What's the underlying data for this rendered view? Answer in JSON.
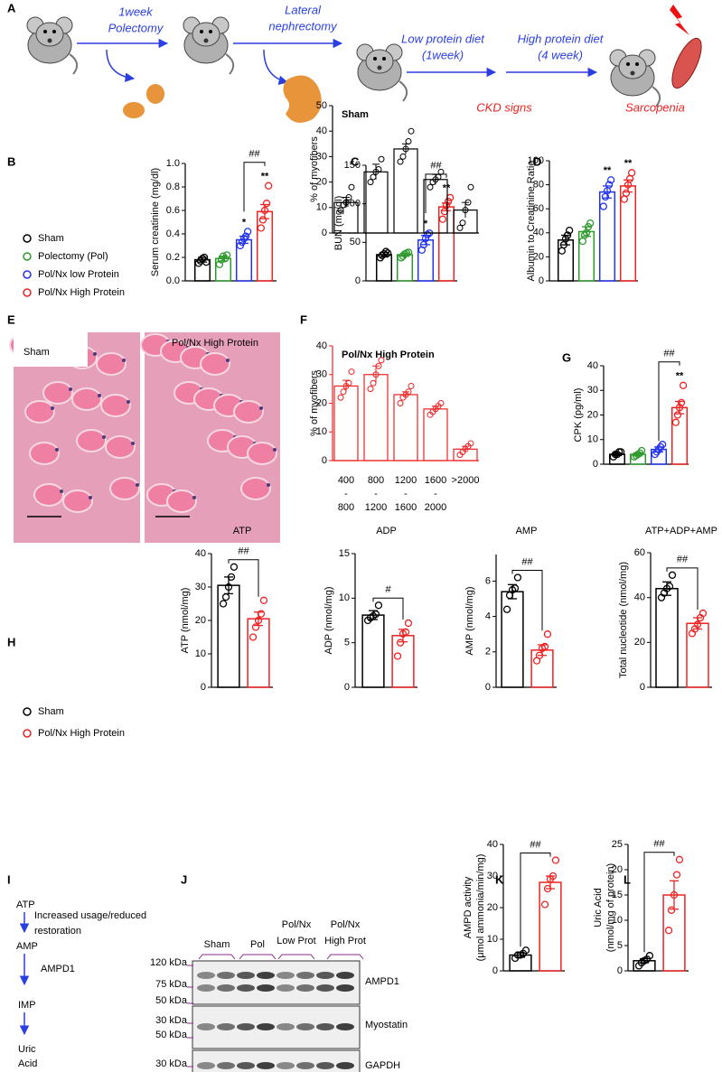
{
  "panel_labels": [
    "A",
    "B",
    "C",
    "D",
    "E",
    "F",
    "G",
    "H",
    "I",
    "J",
    "K",
    "L"
  ],
  "workflow": {
    "steps": [
      [
        "1week",
        "Polectomy"
      ],
      [
        "Lateral",
        "nephrectomy"
      ],
      [
        "Low protein diet",
        "(1week)"
      ],
      [
        "High protein diet",
        "(4 week)"
      ]
    ],
    "outcomes": [
      "CKD signs",
      "Sarcopenia"
    ]
  },
  "histology": [
    "Sham",
    "Pol/Nx High Protein"
  ],
  "pathway": {
    "nodes": [
      "ATP",
      "AMP",
      "IMP",
      [
        "Uric",
        "Acid"
      ]
    ],
    "edges": [
      [
        "Increased usage/reduced",
        "restoration"
      ],
      "AMPD1"
    ]
  },
  "western_blot": {
    "groups": [
      "Sham",
      "Pol",
      [
        "Pol/Nx",
        "Low Prot"
      ],
      [
        "Pol/Nx",
        "High Prot"
      ]
    ],
    "markers": [
      "120 kDa",
      "75 kDa",
      "50 kDa",
      "30 kDa",
      "50 kDa",
      "30 kDa"
    ],
    "proteins": [
      "AMPD1",
      "Myostatin",
      "GAPDH"
    ]
  },
  "chart_data": [
    {
      "type": "dotbar",
      "y_label": "Serum creatinine (mg/dl)",
      "ylim": [
        0,
        1
      ],
      "yticks": [
        {
          "value": 0,
          "label": "0.0"
        },
        {
          "value": 0.2,
          "label": "0.2"
        },
        {
          "value": 0.4,
          "label": "0.4"
        },
        {
          "value": 0.6,
          "label": "0.6"
        },
        {
          "value": 0.8,
          "label": "0.8"
        },
        {
          "value": 1,
          "label": "1.0"
        }
      ],
      "legend": "left",
      "comparison": "##",
      "series": [
        {
          "name": "Sham",
          "color": "#000000",
          "values": [
            0.18
          ],
          "errors": [
            0.02
          ],
          "points": [
            0.15,
            0.17,
            0.19,
            0.2,
            0.16
          ]
        },
        {
          "name": "Polectomy (Pol)",
          "color": "#2e9a2e",
          "values": [
            0.19
          ],
          "errors": [
            0.02
          ],
          "points": [
            0.14,
            0.18,
            0.21,
            0.19,
            0.22
          ]
        },
        {
          "name": "Pol/Nx low Protein",
          "color": "#2233ee",
          "values": [
            0.35
          ],
          "errors": [
            0.03
          ],
          "points": [
            0.3,
            0.33,
            0.36,
            0.38,
            0.42
          ],
          "significance": "*"
        },
        {
          "name": "Pol/Nx High Protein",
          "color": "#ee2222",
          "values": [
            0.59
          ],
          "errors": [
            0.06
          ],
          "points": [
            0.45,
            0.52,
            0.6,
            0.66,
            0.81
          ],
          "significance": "**"
        }
      ]
    },
    {
      "type": "dotbar",
      "y_label": "BUN (mg/dl)",
      "ylim": [
        0,
        150
      ],
      "yticks": [
        0,
        50,
        100,
        150
      ],
      "comparison": "##",
      "series": [
        {
          "color": "#000000",
          "values": [
            34
          ],
          "errors": [
            3
          ],
          "points": [
            30,
            33,
            35,
            38,
            36
          ]
        },
        {
          "color": "#2e9a2e",
          "values": [
            34
          ],
          "errors": [
            2
          ],
          "points": [
            30,
            32,
            35,
            36,
            37
          ]
        },
        {
          "color": "#2233ee",
          "values": [
            53
          ],
          "errors": [
            6
          ],
          "points": [
            40,
            47,
            55,
            60,
            62
          ],
          "significance": "*"
        },
        {
          "color": "#ee2222",
          "values": [
            96
          ],
          "errors": [
            5
          ],
          "points": [
            80,
            90,
            98,
            103,
            108
          ],
          "significance": "**"
        }
      ]
    },
    {
      "type": "dotbar",
      "y_label": "Albumin to Creatinine  Ratio",
      "ylim": [
        0,
        100
      ],
      "yticks": [
        0,
        20,
        40,
        60,
        80,
        100
      ],
      "series": [
        {
          "color": "#000000",
          "values": [
            34
          ],
          "errors": [
            4
          ],
          "points": [
            25,
            30,
            35,
            38,
            42
          ]
        },
        {
          "color": "#2e9a2e",
          "values": [
            41
          ],
          "errors": [
            4
          ],
          "points": [
            33,
            38,
            40,
            45,
            48
          ]
        },
        {
          "color": "#2233ee",
          "values": [
            74
          ],
          "errors": [
            5
          ],
          "points": [
            62,
            70,
            75,
            80,
            84
          ],
          "significance": "**"
        },
        {
          "color": "#ee2222",
          "values": [
            79
          ],
          "errors": [
            5
          ],
          "points": [
            68,
            73,
            80,
            85,
            90
          ],
          "significance": "**"
        }
      ]
    },
    {
      "type": "bar",
      "title": "Sham",
      "y_label": "% of myofibers",
      "color": "#000000",
      "ylim": [
        0,
        50
      ],
      "yticks": [
        0,
        10,
        20,
        30,
        40,
        50
      ],
      "values": [
        12,
        24,
        33,
        21,
        9
      ],
      "errors": [
        2,
        3,
        2,
        2,
        3
      ],
      "points": [
        [
          9,
          11,
          12,
          14,
          18
        ],
        [
          20,
          22,
          24,
          25,
          29
        ],
        [
          28,
          30,
          33,
          36,
          40
        ],
        [
          18,
          20,
          21,
          22,
          24
        ],
        [
          2,
          4,
          9,
          12,
          18
        ]
      ]
    },
    {
      "type": "bar",
      "title": "Pol/Nx High Protein",
      "y_label": "% of myofibers",
      "color": "#ee2222",
      "ylim": [
        0,
        40
      ],
      "yticks": [
        0,
        10,
        20,
        30,
        40
      ],
      "categories": [
        [
          "400",
          "-",
          "800"
        ],
        [
          "800",
          "-",
          "1200"
        ],
        [
          "1200",
          "-",
          "1600"
        ],
        [
          "1600",
          "-",
          "2000"
        ],
        [
          ">2000"
        ]
      ],
      "values": [
        26,
        30,
        23,
        18,
        4
      ],
      "errors": [
        2,
        3,
        1,
        1,
        1
      ],
      "points": [
        [
          22,
          24,
          26,
          27,
          31
        ],
        [
          25,
          27,
          30,
          33,
          35
        ],
        [
          20,
          22,
          23,
          24,
          26
        ],
        [
          16,
          17,
          18,
          19,
          20
        ],
        [
          2,
          3,
          4,
          5,
          6
        ]
      ]
    },
    {
      "type": "dotbar",
      "y_label": "CPK (pg/ml)",
      "ylim": [
        0,
        40
      ],
      "yticks": [
        0,
        10,
        20,
        30,
        40
      ],
      "comparison": "##",
      "series": [
        {
          "color": "#000000",
          "values": [
            4
          ],
          "errors": [
            0.5
          ],
          "points": [
            3,
            4,
            4,
            5,
            5
          ]
        },
        {
          "color": "#2e9a2e",
          "values": [
            4
          ],
          "errors": [
            0.6
          ],
          "points": [
            3,
            3.5,
            4,
            4.5,
            5.5
          ]
        },
        {
          "color": "#2233ee",
          "values": [
            6
          ],
          "errors": [
            1
          ],
          "points": [
            4,
            5,
            6,
            7,
            8
          ]
        },
        {
          "color": "#ee2222",
          "values": [
            23
          ],
          "errors": [
            2.5
          ],
          "points": [
            17,
            20,
            23,
            25,
            32
          ],
          "significance": "**"
        }
      ]
    },
    {
      "type": "dotbar",
      "title": "ATP",
      "title_color": "#2a3fe0",
      "y_label": "ATP (nmol/mg)",
      "ylim": [
        0,
        40
      ],
      "yticks": [
        0,
        10,
        20,
        30,
        40
      ],
      "legend": "left",
      "comparison": "##",
      "series": [
        {
          "name": "Sham",
          "color": "#000000",
          "values": [
            30.5
          ],
          "errors": [
            2.5
          ],
          "points": [
            25,
            27,
            30,
            33,
            36
          ]
        },
        {
          "name": "Pol/Nx High Protein",
          "color": "#ee2222",
          "values": [
            20.5
          ],
          "errors": [
            2
          ],
          "points": [
            15,
            18,
            20,
            22,
            26
          ]
        }
      ]
    },
    {
      "type": "dotbar",
      "title": "ADP",
      "title_color": "#2a3fe0",
      "y_label": "ADP  (nmol/mg)",
      "ylim": [
        0,
        15
      ],
      "yticks": [
        0,
        5,
        10,
        15
      ],
      "comparison": "#",
      "series": [
        {
          "color": "#000000",
          "values": [
            8.1
          ],
          "errors": [
            0.5
          ],
          "points": [
            7.5,
            7.8,
            8,
            8.2,
            9.2
          ]
        },
        {
          "color": "#ee2222",
          "values": [
            5.8
          ],
          "errors": [
            0.7
          ],
          "points": [
            3.5,
            5,
            6,
            6.2,
            7.2
          ]
        }
      ]
    },
    {
      "type": "dotbar",
      "title": "AMP",
      "title_color": "#2a3fe0",
      "y_label": "AMP (nmol/mg)",
      "ylim": [
        0,
        7.5
      ],
      "yticks": [
        0,
        2,
        4,
        6
      ],
      "comparison": "##",
      "series": [
        {
          "color": "#000000",
          "values": [
            5.4
          ],
          "errors": [
            0.4
          ],
          "points": [
            4.4,
            5.2,
            5.5,
            5.6,
            6.2
          ]
        },
        {
          "color": "#ee2222",
          "values": [
            2.1
          ],
          "errors": [
            0.3
          ],
          "points": [
            1.5,
            1.8,
            2.2,
            2.3,
            3
          ]
        }
      ]
    },
    {
      "type": "dotbar",
      "title": "ATP+ADP+AMP",
      "title_color": "#2a3fe0",
      "y_label": "Total nucleotide (nmol/mg)",
      "ylim": [
        0,
        60
      ],
      "yticks": [
        0,
        20,
        40,
        60
      ],
      "comparison": "##",
      "series": [
        {
          "color": "#000000",
          "values": [
            44
          ],
          "errors": [
            3
          ],
          "points": [
            40,
            42,
            44,
            45,
            50
          ]
        },
        {
          "color": "#ee2222",
          "values": [
            28.5
          ],
          "errors": [
            2.5
          ],
          "points": [
            24,
            26,
            28,
            31,
            33
          ]
        }
      ]
    },
    {
      "type": "dotbar",
      "y_label": [
        "AMPD activity",
        "(μmol ammonia/min/mg)"
      ],
      "ylim": [
        0,
        40
      ],
      "yticks": [
        0,
        10,
        20,
        30,
        40
      ],
      "comparison": "##",
      "series": [
        {
          "color": "#000000",
          "values": [
            5
          ],
          "errors": [
            0.7
          ],
          "points": [
            4,
            5,
            5,
            5.5,
            6.5
          ]
        },
        {
          "color": "#ee2222",
          "values": [
            28
          ],
          "errors": [
            2
          ],
          "points": [
            21,
            26,
            29,
            30,
            35
          ]
        }
      ]
    },
    {
      "type": "dotbar",
      "y_label": [
        "Uric Acid",
        "(nmol/mg of protein)"
      ],
      "ylim": [
        0,
        25
      ],
      "yticks": [
        0,
        5,
        10,
        15,
        20,
        25
      ],
      "comparison": "##",
      "series": [
        {
          "color": "#000000",
          "values": [
            2
          ],
          "errors": [
            0.4
          ],
          "points": [
            1,
            1.6,
            2,
            2.3,
            3
          ]
        },
        {
          "color": "#ee2222",
          "values": [
            15
          ],
          "errors": [
            2.8
          ],
          "points": [
            8,
            12,
            15,
            19,
            22
          ]
        }
      ]
    }
  ]
}
